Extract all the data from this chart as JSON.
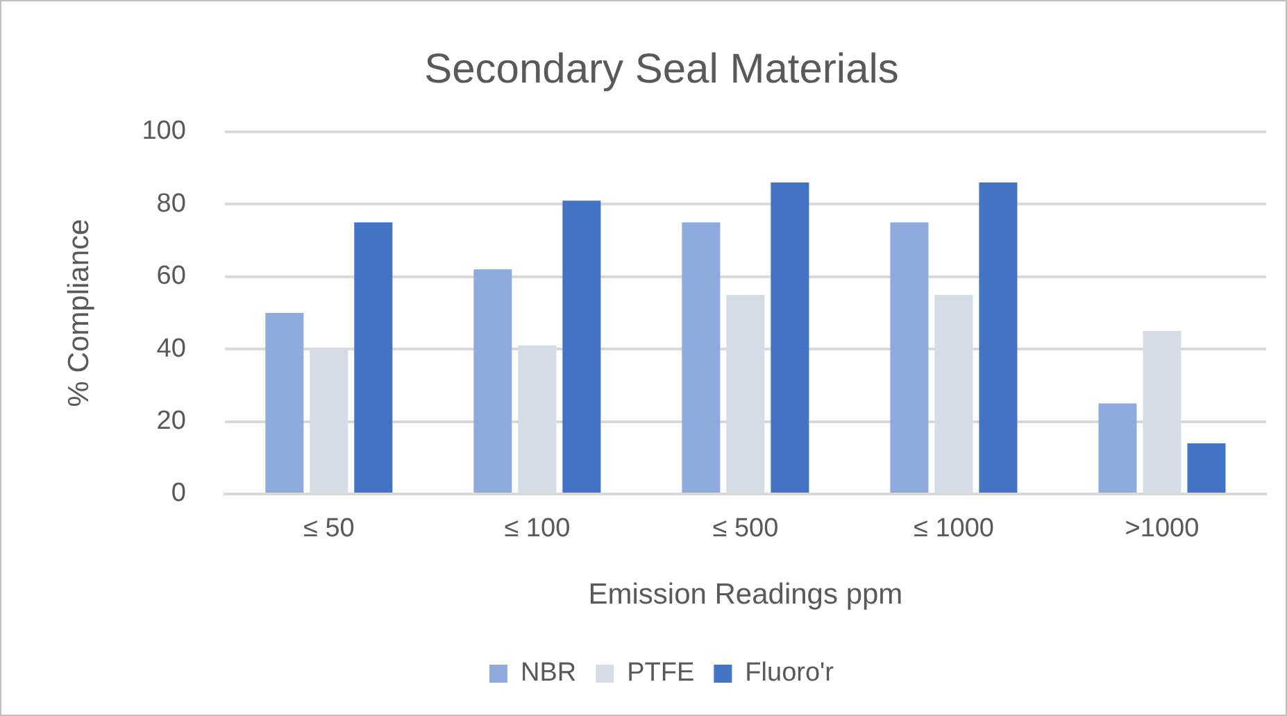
{
  "chart_data": {
    "type": "bar",
    "title": "Secondary Seal Materials",
    "xlabel": "Emission Readings ppm",
    "ylabel": "% Compliance",
    "categories": [
      "≤ 50",
      "≤ 100",
      "≤ 500",
      "≤ 1000",
      ">1000"
    ],
    "series": [
      {
        "name": "NBR",
        "color": "#8faadc",
        "values": [
          50,
          62,
          75,
          75,
          25
        ]
      },
      {
        "name": "PTFE",
        "color": "#d6dce5",
        "values": [
          40,
          41,
          55,
          55,
          45
        ]
      },
      {
        "name": "Fluoro'r",
        "color": "#4472c4",
        "values": [
          75,
          81,
          86,
          86,
          14
        ]
      }
    ],
    "ylim": [
      0,
      100
    ],
    "yticks": [
      0,
      20,
      40,
      60,
      80,
      100
    ],
    "grid": "y",
    "legend": "bottom"
  }
}
